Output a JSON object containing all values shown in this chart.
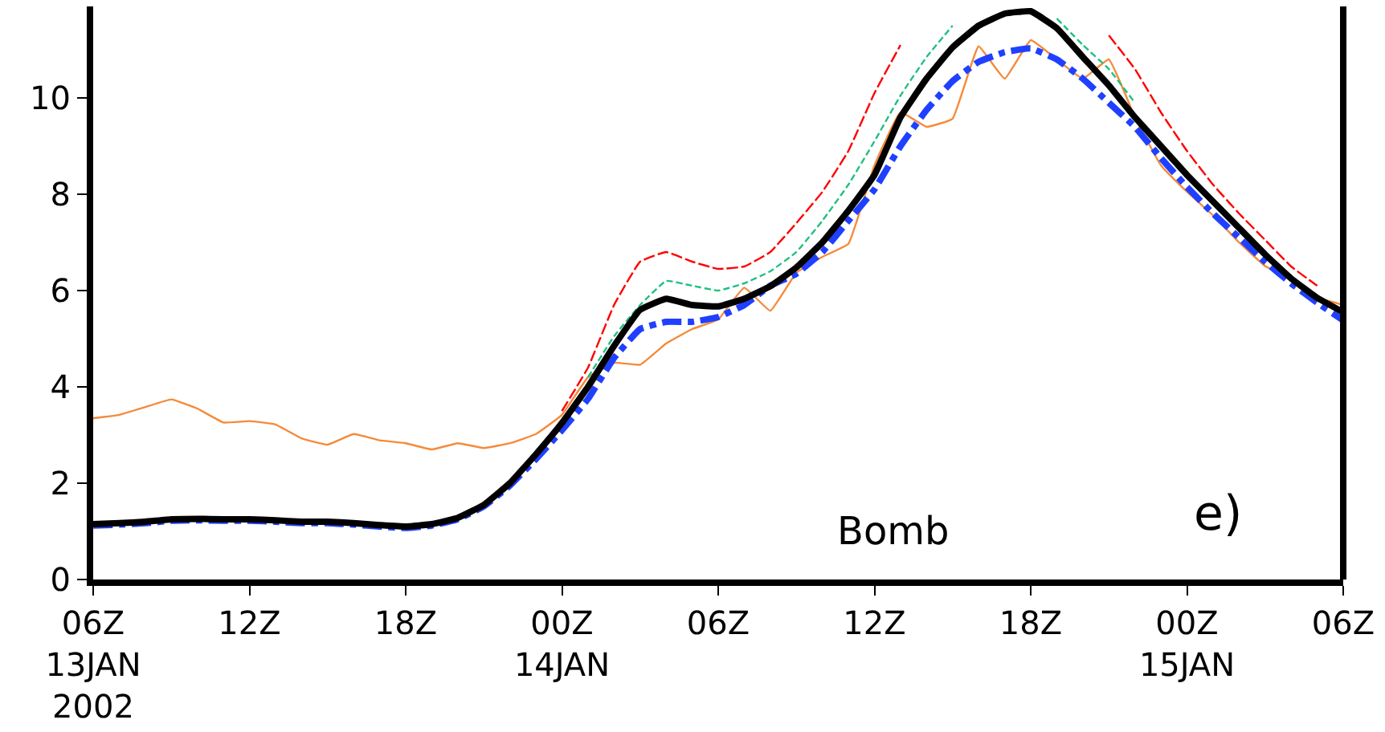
{
  "chart_data": {
    "type": "line",
    "x": [
      "2002-01-13T06:00",
      "2002-01-13T07:00",
      "2002-01-13T08:00",
      "2002-01-13T09:00",
      "2002-01-13T10:00",
      "2002-01-13T11:00",
      "2002-01-13T12:00",
      "2002-01-13T13:00",
      "2002-01-13T14:00",
      "2002-01-13T15:00",
      "2002-01-13T16:00",
      "2002-01-13T17:00",
      "2002-01-13T18:00",
      "2002-01-13T19:00",
      "2002-01-13T20:00",
      "2002-01-13T21:00",
      "2002-01-13T22:00",
      "2002-01-13T23:00",
      "2002-01-14T00:00",
      "2002-01-14T01:00",
      "2002-01-14T02:00",
      "2002-01-14T03:00",
      "2002-01-14T04:00",
      "2002-01-14T05:00",
      "2002-01-14T06:00",
      "2002-01-14T07:00",
      "2002-01-14T08:00",
      "2002-01-14T09:00",
      "2002-01-14T10:00",
      "2002-01-14T11:00",
      "2002-01-14T12:00",
      "2002-01-14T13:00",
      "2002-01-14T14:00",
      "2002-01-14T15:00",
      "2002-01-14T16:00",
      "2002-01-14T17:00",
      "2002-01-14T18:00",
      "2002-01-14T19:00",
      "2002-01-14T20:00",
      "2002-01-14T21:00",
      "2002-01-14T22:00",
      "2002-01-14T23:00",
      "2002-01-15T00:00",
      "2002-01-15T01:00",
      "2002-01-15T02:00",
      "2002-01-15T03:00",
      "2002-01-15T04:00",
      "2002-01-15T05:00",
      "2002-01-15T06:00"
    ],
    "series": [
      {
        "color": "#f58a3a",
        "line_style": "solid",
        "values": [
          3.35,
          3.42,
          3.58,
          3.74,
          3.55,
          3.26,
          3.29,
          3.22,
          2.93,
          2.8,
          3.02,
          2.89,
          2.83,
          2.7,
          2.83,
          2.73,
          2.83,
          3.02,
          3.42,
          4.2,
          4.5,
          4.46,
          4.9,
          5.2,
          5.4,
          6.06,
          5.58,
          6.37,
          6.7,
          6.97,
          8.6,
          9.7,
          9.4,
          9.57,
          11.07,
          10.4,
          11.2,
          10.8,
          10.4,
          10.8,
          9.6,
          8.6,
          8.05,
          7.56,
          7.0,
          6.51,
          6.25,
          5.86,
          5.7
        ]
      },
      {
        "color": "#ff0000",
        "line_style": "dashed",
        "values": [
          null,
          null,
          null,
          null,
          null,
          null,
          null,
          null,
          null,
          null,
          null,
          null,
          null,
          null,
          null,
          null,
          null,
          null,
          3.5,
          4.4,
          5.7,
          6.6,
          6.8,
          6.6,
          6.45,
          6.5,
          6.8,
          7.4,
          8.05,
          8.9,
          10.1,
          11.1,
          null,
          null,
          null,
          null,
          null,
          null,
          null,
          11.3,
          10.6,
          9.7,
          8.9,
          8.2,
          7.6,
          7.05,
          6.5,
          6.1,
          null
        ]
      },
      {
        "color": "#20c080",
        "line_style": "dotted",
        "values": [
          null,
          null,
          null,
          null,
          null,
          null,
          null,
          null,
          null,
          null,
          null,
          null,
          null,
          null,
          null,
          null,
          null,
          null,
          null,
          4.2,
          5.05,
          5.7,
          6.2,
          6.1,
          6.0,
          6.15,
          6.4,
          6.8,
          7.45,
          8.2,
          9.1,
          10.05,
          10.85,
          11.5,
          null,
          null,
          null,
          11.65,
          11.1,
          10.6,
          9.9,
          null,
          null,
          null,
          null,
          null,
          null,
          null,
          null
        ]
      },
      {
        "color": "#2040ff",
        "line_style": "dashdot",
        "values": [
          1.12,
          1.14,
          1.17,
          1.22,
          1.23,
          1.22,
          1.22,
          1.2,
          1.17,
          1.17,
          1.14,
          1.1,
          1.07,
          1.12,
          1.25,
          1.52,
          1.95,
          2.5,
          3.1,
          3.75,
          4.6,
          5.2,
          5.35,
          5.35,
          5.45,
          5.7,
          6.1,
          6.35,
          6.8,
          7.45,
          8.1,
          9.0,
          9.75,
          10.35,
          10.75,
          10.95,
          11.03,
          10.8,
          10.4,
          9.9,
          9.4,
          8.75,
          8.15,
          7.6,
          7.1,
          6.6,
          6.15,
          5.75,
          5.38
        ]
      },
      {
        "color": "#000000",
        "line_style": "solid",
        "values": [
          1.15,
          1.17,
          1.2,
          1.25,
          1.26,
          1.25,
          1.25,
          1.23,
          1.2,
          1.2,
          1.17,
          1.13,
          1.1,
          1.15,
          1.28,
          1.55,
          2.0,
          2.6,
          3.25,
          4.0,
          4.85,
          5.6,
          5.83,
          5.7,
          5.67,
          5.83,
          6.09,
          6.48,
          7.0,
          7.66,
          8.4,
          9.6,
          10.4,
          11.05,
          11.5,
          11.75,
          11.8,
          11.45,
          10.85,
          10.26,
          9.6,
          9.0,
          8.4,
          7.85,
          7.3,
          6.75,
          6.25,
          5.85,
          5.55
        ]
      }
    ],
    "xlim": [
      "2002-01-13T06:00",
      "2002-01-15T06:00"
    ],
    "xticks": [
      {
        "value": "2002-01-13T06:00",
        "label": "06Z\n13JAN\n2002"
      },
      {
        "value": "2002-01-13T12:00",
        "label": "12Z"
      },
      {
        "value": "2002-01-13T18:00",
        "label": "18Z"
      },
      {
        "value": "2002-01-14T00:00",
        "label": "00Z\n14JAN"
      },
      {
        "value": "2002-01-14T06:00",
        "label": "06Z"
      },
      {
        "value": "2002-01-14T12:00",
        "label": "12Z"
      },
      {
        "value": "2002-01-14T18:00",
        "label": "18Z"
      },
      {
        "value": "2002-01-15T00:00",
        "label": "00Z\n15JAN"
      },
      {
        "value": "2002-01-15T06:00",
        "label": "06Z"
      }
    ],
    "ylim": [
      0,
      11.9
    ],
    "yticks": [
      0,
      2,
      4,
      6,
      8,
      10
    ],
    "annotations": [
      "Bomb",
      "e)"
    ],
    "marker": "none"
  }
}
